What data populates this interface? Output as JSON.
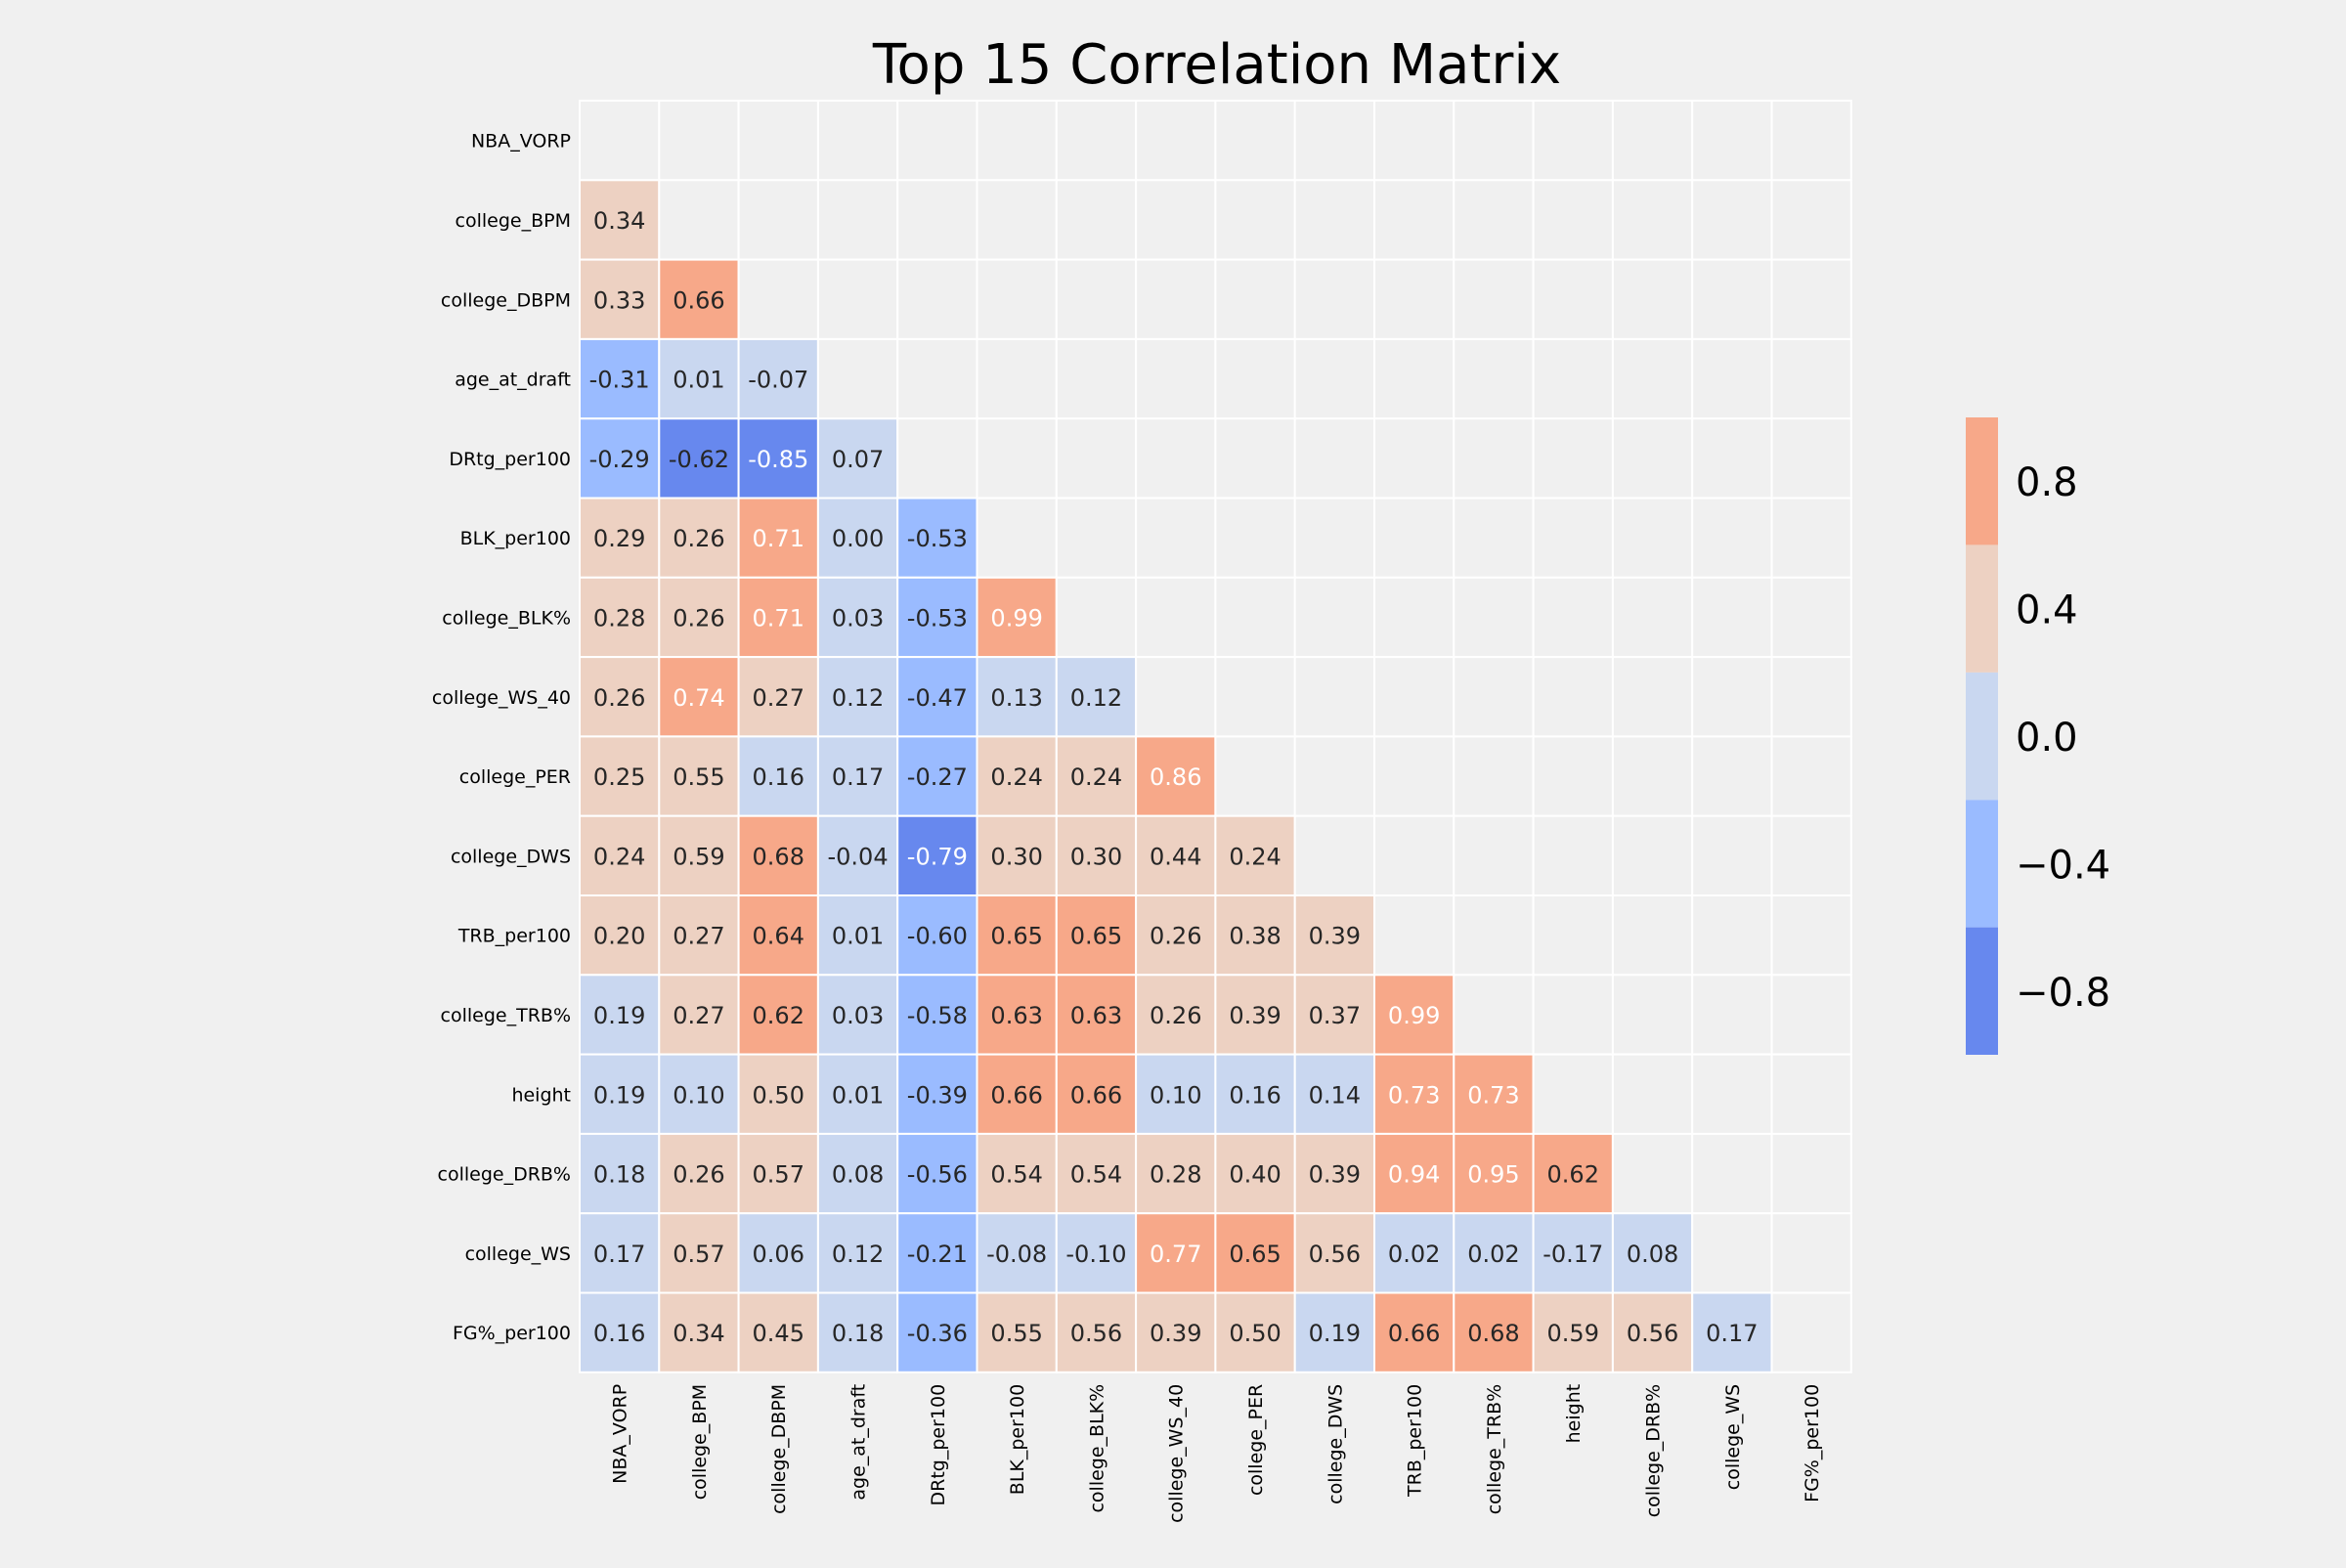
{
  "chart_data": {
    "type": "heatmap",
    "title": "Top 15 Correlation Matrix",
    "variables": [
      "NBA_VORP",
      "college_BPM",
      "college_DBPM",
      "age_at_draft",
      "DRtg_per100",
      "BLK_per100",
      "college_BLK%",
      "college_WS_40",
      "college_PER",
      "college_DWS",
      "TRB_per100",
      "college_TRB%",
      "height",
      "college_DRB%",
      "college_WS",
      "FG%_per100"
    ],
    "mask": "upper-triangle-including-diagonal",
    "values": [
      [],
      [
        0.34
      ],
      [
        0.33,
        0.66
      ],
      [
        -0.31,
        0.01,
        -0.07
      ],
      [
        -0.29,
        -0.62,
        -0.85,
        0.07
      ],
      [
        0.29,
        0.26,
        0.71,
        0.0,
        -0.53
      ],
      [
        0.28,
        0.26,
        0.71,
        0.03,
        -0.53,
        0.99
      ],
      [
        0.26,
        0.74,
        0.27,
        0.12,
        -0.47,
        0.13,
        0.12
      ],
      [
        0.25,
        0.55,
        0.16,
        0.17,
        -0.27,
        0.24,
        0.24,
        0.86
      ],
      [
        0.24,
        0.59,
        0.68,
        -0.04,
        -0.79,
        0.3,
        0.3,
        0.44,
        0.24
      ],
      [
        0.2,
        0.27,
        0.64,
        0.01,
        -0.6,
        0.65,
        0.65,
        0.26,
        0.38,
        0.39
      ],
      [
        0.19,
        0.27,
        0.62,
        0.03,
        -0.58,
        0.63,
        0.63,
        0.26,
        0.39,
        0.37,
        0.99
      ],
      [
        0.19,
        0.1,
        0.5,
        0.01,
        -0.39,
        0.66,
        0.66,
        0.1,
        0.16,
        0.14,
        0.73,
        0.73
      ],
      [
        0.18,
        0.26,
        0.57,
        0.08,
        -0.56,
        0.54,
        0.54,
        0.28,
        0.4,
        0.39,
        0.94,
        0.95,
        0.62
      ],
      [
        0.17,
        0.57,
        0.06,
        0.12,
        -0.21,
        -0.08,
        -0.1,
        0.77,
        0.65,
        0.56,
        0.02,
        0.02,
        -0.17,
        0.08
      ],
      [
        0.16,
        0.34,
        0.45,
        0.18,
        -0.36,
        0.55,
        0.56,
        0.39,
        0.5,
        0.19,
        0.66,
        0.68,
        0.59,
        0.56,
        0.17
      ]
    ],
    "colorbar": {
      "range": [
        -1,
        1
      ],
      "bins": [
        {
          "from": -1.0,
          "to": -0.6,
          "color": "#6788ee"
        },
        {
          "from": -0.6,
          "to": -0.2,
          "color": "#9abbff"
        },
        {
          "from": -0.2,
          "to": 0.2,
          "color": "#c9d7f0"
        },
        {
          "from": 0.2,
          "to": 0.6,
          "color": "#edd1c2"
        },
        {
          "from": 0.6,
          "to": 1.0,
          "color": "#f7a889"
        },
        {
          "from": 1.0,
          "to": 1.4,
          "color": "#e26952"
        }
      ],
      "ticks": [
        0.8,
        0.4,
        0.0,
        -0.4,
        -0.8
      ],
      "tick_labels": [
        "0.8",
        "0.4",
        "0.0",
        "−0.4",
        "−0.8"
      ]
    },
    "colors": {
      "strong_negative": "#6788ee",
      "negative": "#9abbff",
      "weak_negative": "#c9d7f0",
      "weak_positive": "#edd1c2",
      "positive": "#f7a889",
      "strong_positive": "#e26952",
      "background": "#f0f0f0",
      "gridline": "#ffffff",
      "dark_text": "#262626",
      "light_text": "#ffffff"
    }
  }
}
